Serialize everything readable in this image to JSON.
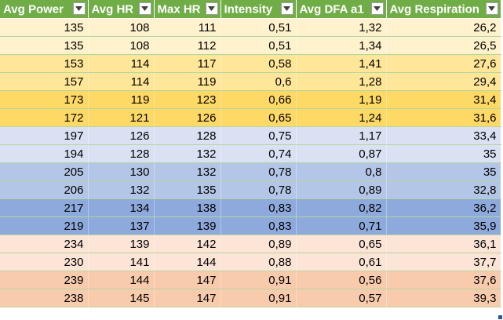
{
  "columns": [
    "Avg Power",
    "Avg HR",
    "Max HR",
    "Intensity",
    "Avg DFA a1",
    "Avg Respiration"
  ],
  "filter_icon": "dropdown-arrow-icon",
  "band_colors": [
    "#fff2cc",
    "#ffe699",
    "#ffd966",
    "#d9e1f2",
    "#b4c6e7",
    "#8ea9db",
    "#fce4d6",
    "#f8cbad"
  ],
  "header_color": "#70ad47",
  "rows": [
    {
      "band": 0,
      "cells": [
        "135",
        "108",
        "111",
        "0,51",
        "1,32",
        "26,2"
      ]
    },
    {
      "band": 0,
      "cells": [
        "135",
        "108",
        "112",
        "0,51",
        "1,34",
        "26,5"
      ]
    },
    {
      "band": 1,
      "cells": [
        "153",
        "114",
        "117",
        "0,58",
        "1,41",
        "27,6"
      ]
    },
    {
      "band": 1,
      "cells": [
        "157",
        "114",
        "119",
        "0,6",
        "1,28",
        "29,4"
      ]
    },
    {
      "band": 2,
      "cells": [
        "173",
        "119",
        "123",
        "0,66",
        "1,19",
        "31,4"
      ]
    },
    {
      "band": 2,
      "cells": [
        "172",
        "121",
        "126",
        "0,65",
        "1,24",
        "31,6"
      ]
    },
    {
      "band": 3,
      "cells": [
        "197",
        "126",
        "128",
        "0,75",
        "1,17",
        "33,4"
      ]
    },
    {
      "band": 3,
      "cells": [
        "194",
        "128",
        "132",
        "0,74",
        "0,87",
        "35"
      ]
    },
    {
      "band": 4,
      "cells": [
        "205",
        "130",
        "132",
        "0,78",
        "0,8",
        "35"
      ]
    },
    {
      "band": 4,
      "cells": [
        "206",
        "132",
        "135",
        "0,78",
        "0,89",
        "32,8"
      ]
    },
    {
      "band": 5,
      "cells": [
        "217",
        "134",
        "138",
        "0,83",
        "0,82",
        "36,2"
      ]
    },
    {
      "band": 5,
      "cells": [
        "219",
        "137",
        "139",
        "0,83",
        "0,71",
        "35,9"
      ]
    },
    {
      "band": 6,
      "cells": [
        "234",
        "139",
        "142",
        "0,89",
        "0,65",
        "36,1"
      ]
    },
    {
      "band": 6,
      "cells": [
        "230",
        "141",
        "144",
        "0,88",
        "0,61",
        "37,7"
      ]
    },
    {
      "band": 7,
      "cells": [
        "239",
        "144",
        "147",
        "0,91",
        "0,56",
        "37,6"
      ]
    },
    {
      "band": 7,
      "cells": [
        "238",
        "145",
        "147",
        "0,91",
        "0,57",
        "39,3"
      ]
    }
  ]
}
